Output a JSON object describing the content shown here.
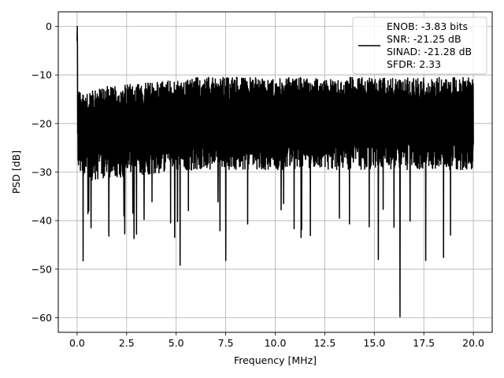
{
  "chart_data": {
    "type": "line",
    "title": "",
    "xlabel": "Frequency [MHz]",
    "ylabel": "PSD [dB]",
    "xlim": [
      -0.95,
      20.95
    ],
    "ylim": [
      -63,
      3
    ],
    "x_ticks": [
      0.0,
      2.5,
      5.0,
      7.5,
      10.0,
      12.5,
      15.0,
      17.5,
      20.0
    ],
    "x_tick_labels": [
      "0.0",
      "2.5",
      "5.0",
      "7.5",
      "10.0",
      "12.5",
      "15.0",
      "17.5",
      "20.0"
    ],
    "y_ticks": [
      0,
      -10,
      -20,
      -30,
      -40,
      -50,
      -60
    ],
    "y_tick_labels": [
      "0",
      "−10",
      "−20",
      "−30",
      "−40",
      "−50",
      "−60"
    ],
    "grid": true,
    "legend_placement": "top-right",
    "legend": [
      "ENOB: -3.83 bits",
      "SNR: -21.25 dB",
      "SINAD: -21.28 dB",
      "SFDR: 2.33"
    ],
    "line_color": "#000000",
    "series": [
      {
        "x_start": 0.0,
        "x_end": 20.0,
        "points": 2048,
        "typical_band_db": [
          -32,
          -9
        ],
        "peak_db": 0,
        "notable_dips": [
          {
            "x": 0.3,
            "y": -48.3
          },
          {
            "x": 0.7,
            "y": -41.5
          },
          {
            "x": 1.6,
            "y": -43.2
          },
          {
            "x": 3.0,
            "y": -42.8
          },
          {
            "x": 5.2,
            "y": -49.2
          },
          {
            "x": 7.5,
            "y": -48.2
          },
          {
            "x": 11.3,
            "y": -43.5
          },
          {
            "x": 15.2,
            "y": -48.0
          },
          {
            "x": 16.3,
            "y": -59.8
          },
          {
            "x": 17.6,
            "y": -48.2
          },
          {
            "x": 18.5,
            "y": -47.6
          }
        ]
      }
    ]
  }
}
